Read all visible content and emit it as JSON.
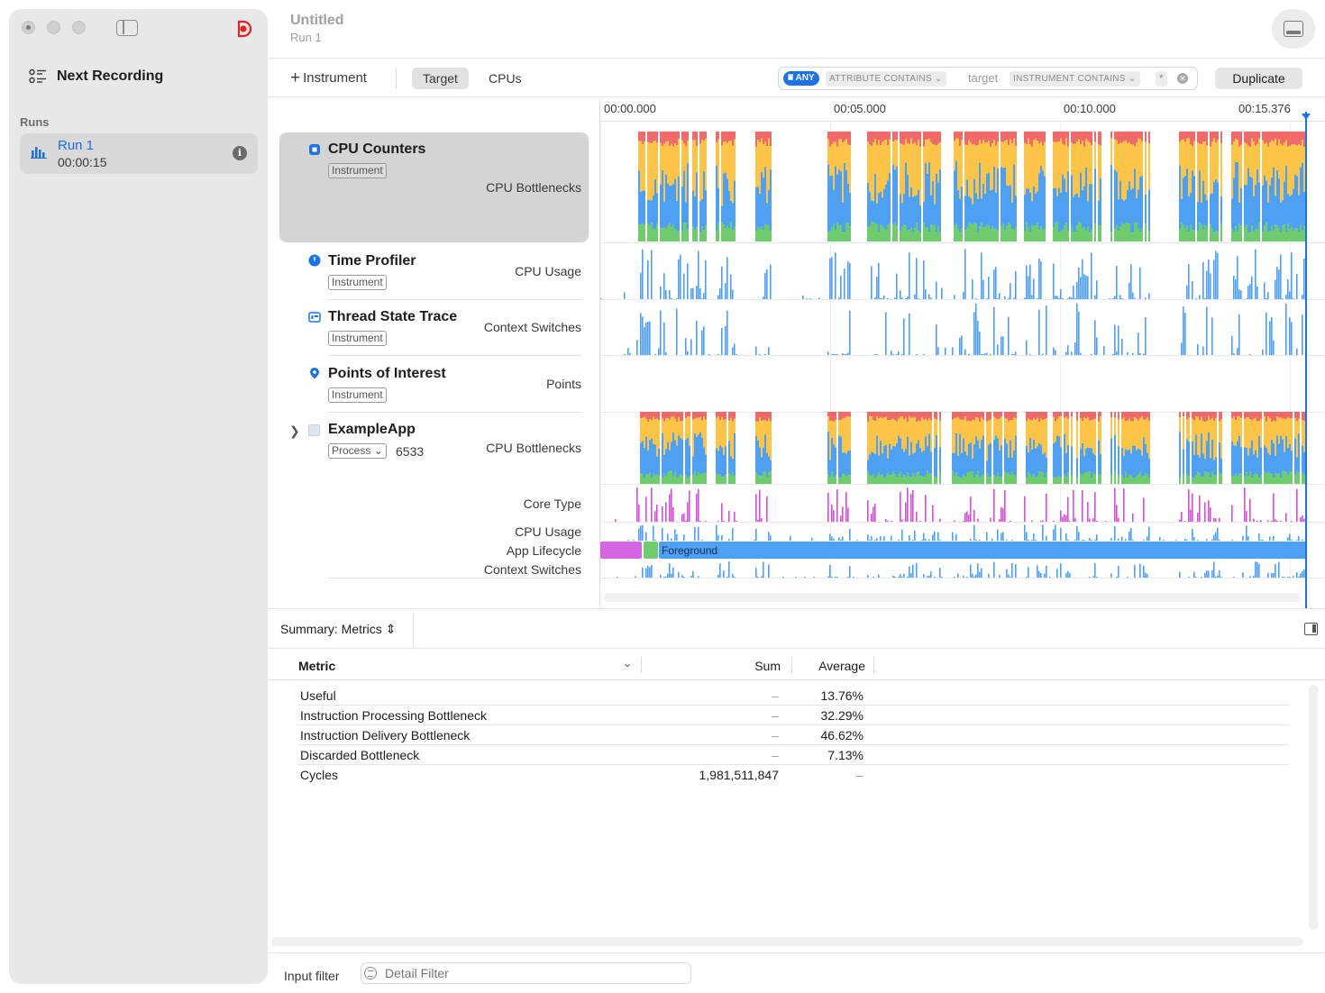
{
  "sidebar": {
    "next_recording": "Next Recording",
    "runs_header": "Runs",
    "runs": [
      {
        "name": "Run 1",
        "duration": "00:00:15"
      }
    ]
  },
  "header": {
    "title": "Untitled",
    "subtitle": "Run 1"
  },
  "toolbar": {
    "add_instrument": "Instrument",
    "segments": [
      "Target",
      "CPUs"
    ],
    "selected_segment": "Target",
    "filter": {
      "any_token": "ANY",
      "attribute_token": "ATTRIBUTE CONTAINS",
      "attribute_value": "target",
      "instrument_token": "INSTRUMENT CONTAINS",
      "instrument_value": "*"
    },
    "duplicate": "Duplicate"
  },
  "timeline": {
    "ruler_labels": [
      "00:00.000",
      "00:05.000",
      "00:10.000",
      "00:15.376"
    ]
  },
  "tracks": [
    {
      "name": "CPU Counters",
      "badge": "Instrument",
      "category": "CPU Bottlenecks",
      "selected": true
    },
    {
      "name": "Time Profiler",
      "badge": "Instrument",
      "category": "CPU Usage"
    },
    {
      "name": "Thread State Trace",
      "badge": "Instrument",
      "category": "Context Switches"
    },
    {
      "name": "Points of Interest",
      "badge": "Instrument",
      "category": "Points"
    },
    {
      "name": "ExampleApp",
      "badge": "Process",
      "pid": "6533",
      "category": "CPU Bottlenecks",
      "subtracks": [
        "Core Type",
        "CPU Usage",
        "App Lifecycle",
        "Context Switches"
      ],
      "lifecycle_label": "Foreground"
    }
  ],
  "colors": {
    "accent": "#1a73e8",
    "bottleneck_red": "#f06a6a",
    "bottleneck_yellow": "#fcc547",
    "bottleneck_blue": "#4ea1f2",
    "bottleneck_green": "#6fcc6c",
    "core_type_magenta": "#d44fd8",
    "lifecycle_purple": "#d466e0",
    "lifecycle_green": "#6fcc6c"
  },
  "summary": {
    "selector": "Summary: Metrics",
    "columns": {
      "metric": "Metric",
      "sum": "Sum",
      "average": "Average"
    },
    "rows": [
      {
        "metric": "Useful",
        "sum": "–",
        "average": "13.76%"
      },
      {
        "metric": "Instruction Processing Bottleneck",
        "sum": "–",
        "average": "32.29%"
      },
      {
        "metric": "Instruction Delivery Bottleneck",
        "sum": "–",
        "average": "46.62%"
      },
      {
        "metric": "Discarded Bottleneck",
        "sum": "–",
        "average": "7.13%"
      },
      {
        "metric": "Cycles",
        "sum": "1,981,511,847",
        "average": "–"
      }
    ]
  },
  "footer": {
    "input_filter_label": "Input filter",
    "detail_filter_placeholder": "Detail Filter"
  }
}
